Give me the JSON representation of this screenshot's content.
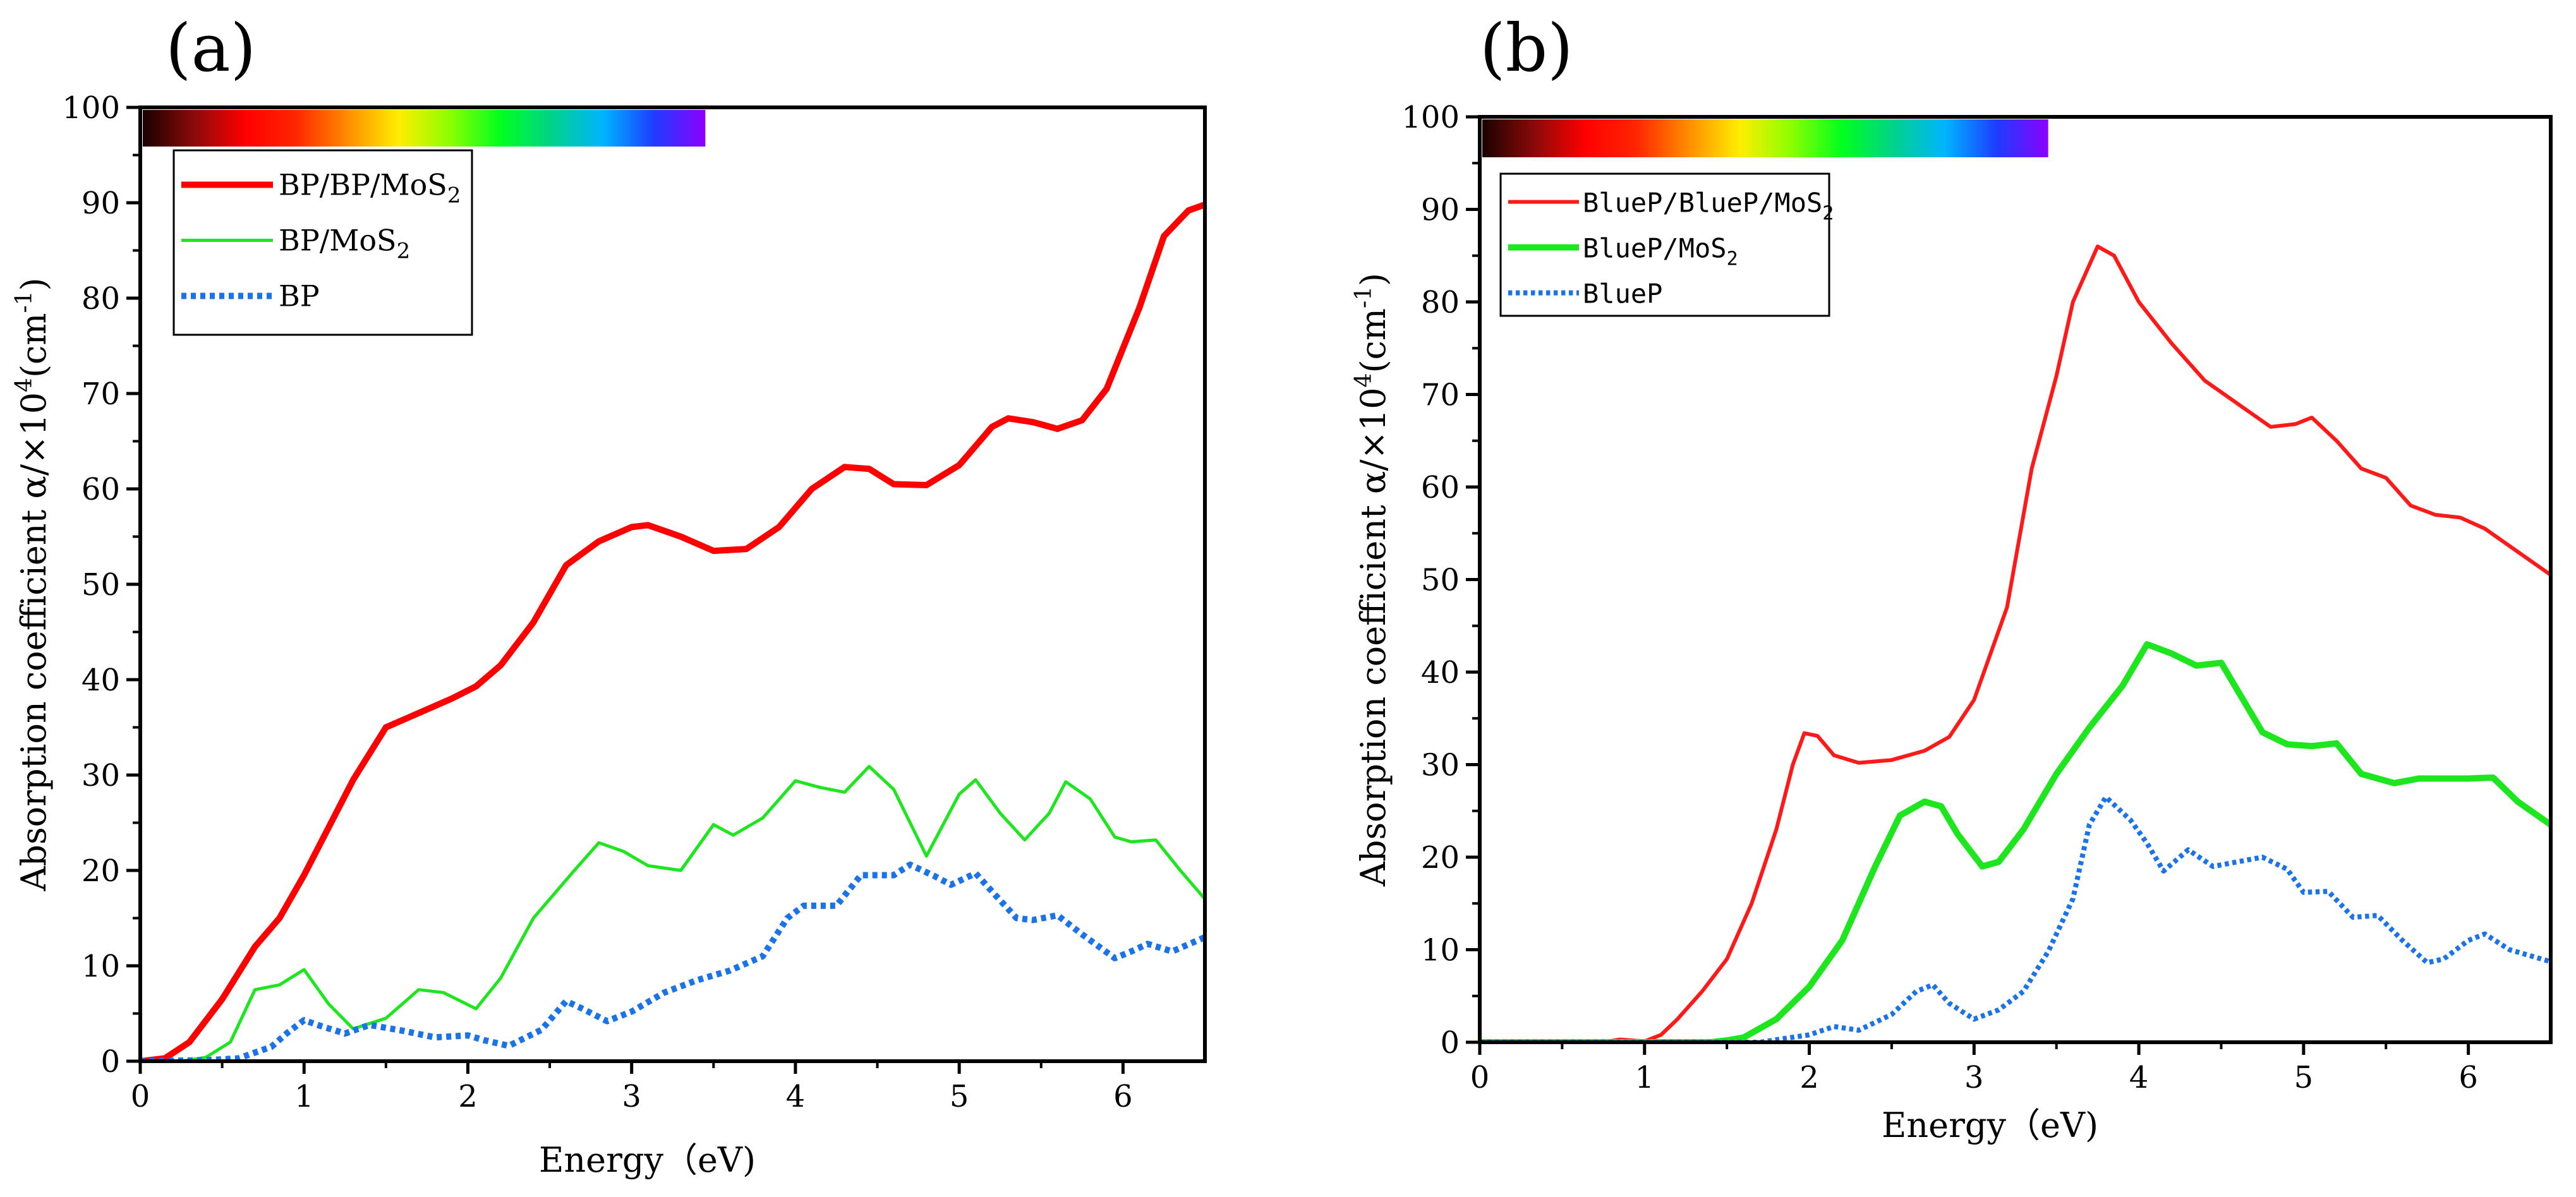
{
  "figure_labels": [
    "(a)",
    "(b)"
  ],
  "chart_data": [
    {
      "type": "line",
      "panel": "(a)",
      "xlabel": "Energy（eV)",
      "ylabel": "Absorption coefficient α/×10⁴(cm⁻¹)",
      "ylabel_parts": {
        "main": "Absorption coefficient α/×10",
        "exp": "4",
        "unit": "(cm",
        "unit_exp": "-1",
        "close": ")"
      },
      "xlim": [
        0,
        6.5
      ],
      "ylim": [
        0,
        100
      ],
      "xticks": [
        0,
        1,
        2,
        3,
        4,
        5,
        6
      ],
      "yticks": [
        0,
        10,
        20,
        30,
        40,
        50,
        60,
        70,
        80,
        90,
        100
      ],
      "spectrum_bar": {
        "x_range": [
          0.0,
          3.45
        ],
        "colors": [
          "#1a0000",
          "#8a0a0a",
          "#ff0000",
          "#ff2600",
          "#ff8c00",
          "#ffee00",
          "#8cff00",
          "#00ff1e",
          "#00d28c",
          "#00b4ff",
          "#1e3cff",
          "#8c00ff"
        ]
      },
      "legend": {
        "position": "top-left",
        "entries": [
          {
            "label": "BP/BP/MoS",
            "sub": "2"
          },
          {
            "label": "BP/MoS",
            "sub": "2"
          },
          {
            "label": "BP",
            "sub": ""
          }
        ]
      },
      "series": [
        {
          "name": "BP/BP/MoS2",
          "color": "#ff0000",
          "style": "solid",
          "width": 10,
          "x": [
            0,
            0.15,
            0.3,
            0.5,
            0.7,
            0.85,
            1.0,
            1.15,
            1.3,
            1.5,
            1.7,
            1.9,
            2.05,
            2.2,
            2.4,
            2.6,
            2.8,
            3.0,
            3.1,
            3.3,
            3.5,
            3.7,
            3.9,
            4.1,
            4.3,
            4.45,
            4.6,
            4.8,
            5.0,
            5.2,
            5.3,
            5.45,
            5.6,
            5.75,
            5.9,
            6.1,
            6.25,
            6.4,
            6.5
          ],
          "y": [
            0,
            0.3,
            2,
            6.5,
            12,
            15,
            19.5,
            24.5,
            29.5,
            35,
            36.5,
            38,
            39.3,
            41.5,
            46,
            52,
            54.5,
            56,
            56.2,
            55,
            53.5,
            53.7,
            56,
            60,
            62.3,
            62.1,
            60.5,
            60.4,
            62.5,
            66.5,
            67.4,
            67,
            66.3,
            67.2,
            70.5,
            79,
            86.5,
            89.2,
            89.8
          ]
        },
        {
          "name": "BP/MoS2",
          "color": "#1ee61e",
          "style": "solid",
          "width": 5,
          "x": [
            0,
            0.25,
            0.4,
            0.55,
            0.7,
            0.85,
            1.0,
            1.15,
            1.3,
            1.5,
            1.7,
            1.85,
            2.05,
            2.2,
            2.4,
            2.65,
            2.8,
            2.95,
            3.1,
            3.3,
            3.5,
            3.62,
            3.8,
            4.0,
            4.15,
            4.3,
            4.45,
            4.6,
            4.8,
            5.0,
            5.1,
            5.25,
            5.4,
            5.55,
            5.65,
            5.8,
            5.95,
            6.05,
            6.2,
            6.35,
            6.5
          ],
          "y": [
            0,
            0,
            0.4,
            2,
            7.5,
            8,
            9.6,
            6,
            3.4,
            4.5,
            7.5,
            7.2,
            5.5,
            8.7,
            15,
            20,
            22.9,
            22,
            20.5,
            20,
            24.8,
            23.7,
            25.5,
            29.4,
            28.7,
            28.2,
            30.9,
            28.5,
            21.5,
            28,
            29.5,
            26,
            23.2,
            26,
            29.3,
            27.5,
            23.5,
            23,
            23.2,
            20,
            17
          ]
        },
        {
          "name": "BP",
          "color": "#1a73e8",
          "style": "dotted",
          "width": 10,
          "x": [
            0,
            0.4,
            0.6,
            0.8,
            0.9,
            1.0,
            1.1,
            1.25,
            1.4,
            1.6,
            1.8,
            2.0,
            2.1,
            2.25,
            2.45,
            2.6,
            2.7,
            2.85,
            3.0,
            3.2,
            3.4,
            3.6,
            3.8,
            3.95,
            4.05,
            4.25,
            4.4,
            4.6,
            4.7,
            4.85,
            4.95,
            5.1,
            5.2,
            5.35,
            5.45,
            5.6,
            5.75,
            5.95,
            6.05,
            6.15,
            6.3,
            6.5
          ],
          "y": [
            0,
            0.1,
            0.3,
            1.5,
            3,
            4.3,
            3.7,
            2.9,
            3.8,
            3.2,
            2.5,
            2.7,
            2.2,
            1.6,
            3.3,
            6.3,
            5.5,
            4.2,
            5.2,
            7.2,
            8.5,
            9.5,
            11,
            15,
            16.3,
            16.3,
            19.5,
            19.5,
            20.6,
            19.4,
            18.5,
            19.7,
            17.8,
            15,
            14.8,
            15.3,
            13.3,
            10.8,
            11.5,
            12.3,
            11.5,
            13
          ]
        }
      ]
    },
    {
      "type": "line",
      "panel": "(b)",
      "xlabel": "Energy（eV)",
      "ylabel": "Absorption coefficient α/×10⁴(cm⁻¹)",
      "ylabel_parts": {
        "main": "Absorption coefficient α/×10",
        "exp": "4",
        "unit": "(cm",
        "unit_exp": "-1",
        "close": ")"
      },
      "xlim": [
        0,
        6.5
      ],
      "ylim": [
        0,
        100
      ],
      "xticks": [
        0,
        1,
        2,
        3,
        4,
        5,
        6
      ],
      "yticks": [
        0,
        10,
        20,
        30,
        40,
        50,
        60,
        70,
        80,
        90,
        100
      ],
      "spectrum_bar": {
        "x_range": [
          0.0,
          3.45
        ],
        "colors": [
          "#1a0000",
          "#8a0a0a",
          "#ff0000",
          "#ff2600",
          "#ff8c00",
          "#ffee00",
          "#8cff00",
          "#00ff1e",
          "#00d28c",
          "#00b4ff",
          "#1e3cff",
          "#8c00ff"
        ]
      },
      "legend": {
        "position": "top-left",
        "entries": [
          {
            "label": "BlueP/BlueP/MoS",
            "sub": "2"
          },
          {
            "label": "BlueP/MoS",
            "sub": "2"
          },
          {
            "label": "BlueP",
            "sub": ""
          }
        ]
      },
      "series": [
        {
          "name": "BlueP/BlueP/MoS2",
          "color": "#ff1a1a",
          "style": "solid",
          "width": 6,
          "x": [
            0,
            0.75,
            0.85,
            1.0,
            1.1,
            1.2,
            1.35,
            1.5,
            1.65,
            1.8,
            1.9,
            1.97,
            2.05,
            2.15,
            2.3,
            2.5,
            2.7,
            2.85,
            3.0,
            3.2,
            3.35,
            3.5,
            3.6,
            3.75,
            3.85,
            4.0,
            4.2,
            4.4,
            4.6,
            4.8,
            4.95,
            5.05,
            5.2,
            5.35,
            5.5,
            5.65,
            5.8,
            5.95,
            6.1,
            6.3,
            6.5
          ],
          "y": [
            0,
            0,
            0.3,
            0.1,
            0.8,
            2.5,
            5.5,
            9,
            15,
            23,
            30,
            33.4,
            33.1,
            31,
            30.2,
            30.5,
            31.5,
            33,
            37,
            47,
            62,
            72,
            80,
            86,
            85,
            80,
            75.5,
            71.5,
            69,
            66.5,
            66.8,
            67.5,
            65,
            62,
            61,
            58,
            57,
            56.7,
            55.5,
            53,
            50.5
          ]
        },
        {
          "name": "BlueP/MoS2",
          "color": "#1ee61e",
          "style": "solid",
          "width": 10,
          "x": [
            0,
            1.4,
            1.5,
            1.6,
            1.8,
            2.0,
            2.2,
            2.4,
            2.55,
            2.7,
            2.8,
            2.9,
            3.05,
            3.15,
            3.3,
            3.5,
            3.7,
            3.9,
            4.05,
            4.2,
            4.35,
            4.5,
            4.6,
            4.75,
            4.9,
            5.05,
            5.2,
            5.35,
            5.55,
            5.7,
            5.85,
            6.0,
            6.15,
            6.3,
            6.5
          ],
          "y": [
            0,
            0,
            0.2,
            0.5,
            2.5,
            6,
            11,
            19,
            24.5,
            26,
            25.5,
            22.5,
            19,
            19.5,
            23,
            29,
            34,
            38.5,
            43,
            42,
            40.7,
            41,
            38,
            33.5,
            32.2,
            32,
            32.3,
            29,
            28,
            28.5,
            28.5,
            28.5,
            28.6,
            26,
            23.5
          ]
        },
        {
          "name": "BlueP",
          "color": "#1a73e8",
          "style": "dotted",
          "width": 8,
          "x": [
            0,
            1.7,
            1.85,
            2.0,
            2.15,
            2.3,
            2.5,
            2.65,
            2.75,
            2.85,
            3.0,
            3.15,
            3.3,
            3.45,
            3.6,
            3.7,
            3.8,
            3.95,
            4.05,
            4.15,
            4.3,
            4.45,
            4.6,
            4.75,
            4.9,
            5.0,
            5.15,
            5.3,
            5.45,
            5.6,
            5.75,
            5.85,
            6.0,
            6.1,
            6.25,
            6.5
          ],
          "y": [
            0,
            0,
            0.4,
            0.8,
            1.7,
            1.3,
            3,
            5.5,
            6.2,
            4.2,
            2.5,
            3.5,
            5.5,
            9.8,
            15.5,
            23.5,
            26.5,
            24,
            21.5,
            18.5,
            20.8,
            19,
            19.5,
            20,
            18.7,
            16.2,
            16.3,
            13.5,
            13.7,
            11,
            8.6,
            9,
            11,
            11.7,
            10,
            8.7
          ]
        }
      ]
    }
  ]
}
